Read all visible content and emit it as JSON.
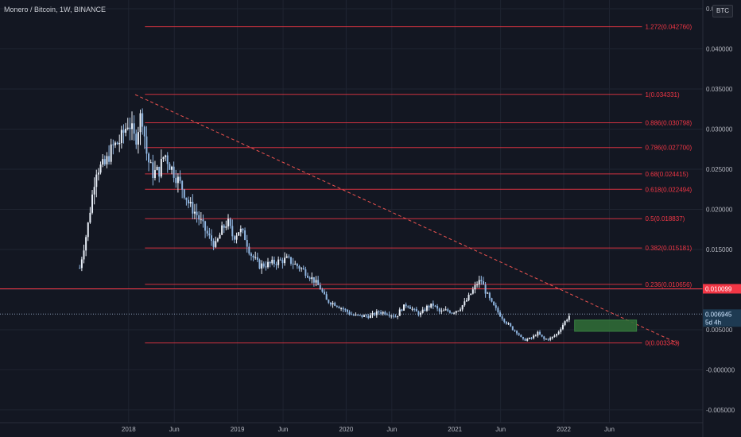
{
  "header": {
    "title": "Monero / Bitcoin, 1W, BINANCE",
    "unit_badge": "BTC"
  },
  "colors": {
    "background": "#131722",
    "grid": "#1f2431",
    "axis_text": "#b2b5be",
    "fib_line": "#f23645",
    "candle_up": "#e8eef7",
    "candle_down": "#8fb5e0",
    "trend_line": "#ef5350",
    "target_box": "#2f6b36",
    "highlight_label": "#f23645"
  },
  "chart_data": {
    "type": "candlestick",
    "title": "Monero / Bitcoin, 1W, BINANCE",
    "xlabel": "",
    "ylabel": "",
    "x_ticks": [
      "2018",
      "Jun",
      "2019",
      "Jun",
      "2020",
      "Jun",
      "2021",
      "Jun",
      "2022",
      "Jun"
    ],
    "y_ticks": [
      "0.045000",
      "0.040000",
      "0.035000",
      "0.030000",
      "0.025000",
      "0.020000",
      "0.015000",
      "0.010000",
      "0.005000",
      "-0.000000",
      "-0.005000"
    ],
    "y_tick_values": [
      0.045,
      0.04,
      0.035,
      0.03,
      0.025,
      0.02,
      0.015,
      0.01,
      0.005,
      0,
      -0.005
    ],
    "ylim": [
      -0.0058,
      0.0455
    ],
    "grid": true,
    "fib_levels": [
      {
        "label": "1.272(0.042760)",
        "value": 0.04276
      },
      {
        "label": "1(0.034331)",
        "value": 0.034331
      },
      {
        "label": "0.886(0.030798)",
        "value": 0.030798
      },
      {
        "label": "0.786(0.027700)",
        "value": 0.0277
      },
      {
        "label": "0.68(0.024415)",
        "value": 0.024415
      },
      {
        "label": "0.618(0.022494)",
        "value": 0.022494
      },
      {
        "label": "0.5(0.018837)",
        "value": 0.018837
      },
      {
        "label": "0.382(0.015181)",
        "value": 0.015181
      },
      {
        "label": "0.236(0.010656)",
        "value": 0.010656
      },
      {
        "label": "0(0.003343)",
        "value": 0.003343
      }
    ],
    "horizontal_line": {
      "label": "0.010099",
      "value": 0.010099
    },
    "last_price": {
      "label": "0.006945",
      "value": 0.006945,
      "countdown": "5d 4h"
    },
    "price_series": [
      [
        2017.55,
        0.0127
      ],
      [
        2017.62,
        0.0175
      ],
      [
        2017.7,
        0.025
      ],
      [
        2017.78,
        0.0255
      ],
      [
        2017.85,
        0.0277
      ],
      [
        2017.92,
        0.0285
      ],
      [
        2018.0,
        0.031
      ],
      [
        2018.06,
        0.0285
      ],
      [
        2018.12,
        0.0322
      ],
      [
        2018.17,
        0.0265
      ],
      [
        2018.22,
        0.0245
      ],
      [
        2018.28,
        0.0248
      ],
      [
        2018.33,
        0.027
      ],
      [
        2018.38,
        0.0255
      ],
      [
        2018.44,
        0.024
      ],
      [
        2018.5,
        0.0225
      ],
      [
        2018.56,
        0.0205
      ],
      [
        2018.62,
        0.0195
      ],
      [
        2018.68,
        0.018
      ],
      [
        2018.74,
        0.0165
      ],
      [
        2018.8,
        0.0155
      ],
      [
        2018.86,
        0.0175
      ],
      [
        2018.91,
        0.0185
      ],
      [
        2018.96,
        0.0165
      ],
      [
        2019.02,
        0.0175
      ],
      [
        2019.07,
        0.0165
      ],
      [
        2019.12,
        0.0145
      ],
      [
        2019.2,
        0.013
      ],
      [
        2019.3,
        0.0132
      ],
      [
        2019.4,
        0.0136
      ],
      [
        2019.46,
        0.0138
      ],
      [
        2019.52,
        0.0132
      ],
      [
        2019.58,
        0.0127
      ],
      [
        2019.64,
        0.012
      ],
      [
        2019.7,
        0.0112
      ],
      [
        2019.76,
        0.0102
      ],
      [
        2019.82,
        0.0086
      ],
      [
        2019.9,
        0.0082
      ],
      [
        2019.98,
        0.0075
      ],
      [
        2020.06,
        0.0068
      ],
      [
        2020.14,
        0.0067
      ],
      [
        2020.22,
        0.0067
      ],
      [
        2020.3,
        0.0072
      ],
      [
        2020.38,
        0.0071
      ],
      [
        2020.46,
        0.0066
      ],
      [
        2020.5,
        0.0075
      ],
      [
        2020.56,
        0.0082
      ],
      [
        2020.62,
        0.0074
      ],
      [
        2020.68,
        0.0069
      ],
      [
        2020.74,
        0.0078
      ],
      [
        2020.8,
        0.0081
      ],
      [
        2020.86,
        0.0072
      ],
      [
        2020.92,
        0.0074
      ],
      [
        2020.98,
        0.0072
      ],
      [
        2021.04,
        0.0076
      ],
      [
        2021.1,
        0.0085
      ],
      [
        2021.16,
        0.0098
      ],
      [
        2021.2,
        0.0107
      ],
      [
        2021.24,
        0.0112
      ],
      [
        2021.28,
        0.0098
      ],
      [
        2021.34,
        0.0082
      ],
      [
        2021.4,
        0.0071
      ],
      [
        2021.46,
        0.0061
      ],
      [
        2021.52,
        0.0052
      ],
      [
        2021.58,
        0.0046
      ],
      [
        2021.62,
        0.0037
      ],
      [
        2021.7,
        0.0039
      ],
      [
        2021.76,
        0.0046
      ],
      [
        2021.82,
        0.0038
      ],
      [
        2021.88,
        0.0039
      ],
      [
        2021.94,
        0.0045
      ],
      [
        2022.0,
        0.0058
      ],
      [
        2022.06,
        0.0069
      ]
    ],
    "trend_line": {
      "from": [
        2018.06,
        0.0343
      ],
      "to": [
        2023.05,
        0.0033
      ]
    },
    "target_box": {
      "x": [
        2022.1,
        2022.67
      ],
      "y": [
        0.0048,
        0.0062
      ]
    }
  }
}
